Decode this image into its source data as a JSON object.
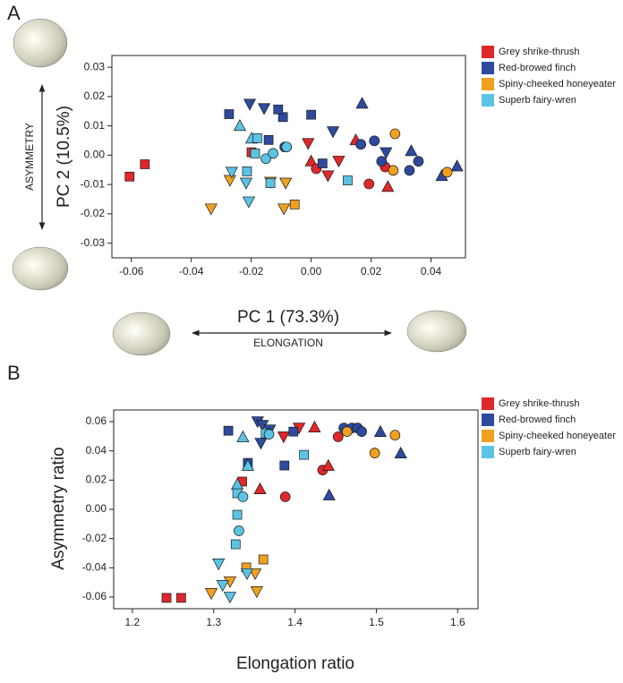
{
  "chart_data": [
    {
      "type": "scatter",
      "panel_label": "A",
      "x_label": "PC 1 (73.3%)",
      "y_label": "PC 2 (10.5%)",
      "x_annotation": "ELONGATION",
      "y_annotation": "ASYMMETRY",
      "xlim": [
        -0.0665,
        0.0515
      ],
      "ylim": [
        -0.035,
        0.034
      ],
      "xticks": [
        -0.06,
        -0.04,
        -0.02,
        {
          "value": 0,
          "label": "0.00"
        },
        0.02,
        0.04
      ],
      "yticks": [
        -0.03,
        -0.02,
        -0.01,
        {
          "value": 0,
          "label": "0.00"
        },
        0.01,
        0.02,
        0.03
      ],
      "legend": "right",
      "series": [
        {
          "name": "Grey shrike-thrush",
          "color": "#e0272a",
          "x": [
            -0.0606,
            -0.0555,
            -0.0199,
            -0.001,
            0,
            0.0017,
            0.0092,
            0.0149,
            0.0056,
            0.0193,
            0.0247,
            0.0256
          ],
          "values": [
            -0.0073,
            -0.0031,
            0.001,
            0.004,
            -0.002,
            -0.0046,
            -0.002,
            0.0052,
            -0.007,
            -0.0098,
            -0.004,
            -0.0107
          ],
          "markers": [
            "square",
            "square",
            "square",
            "triangle-down",
            "triangle-up",
            "circle",
            "triangle-down",
            "triangle-up",
            "triangle-down",
            "circle",
            "circle",
            "triangle-up"
          ]
        },
        {
          "name": "Red-browed finch",
          "color": "#2e4a9e",
          "x": [
            -0.0274,
            -0.0205,
            -0.0157,
            -0.0142,
            -0.0094,
            -0.011,
            0,
            0.0038,
            0.0073,
            0.017,
            0.0166,
            0.0211,
            0.0235,
            0.025,
            0.0334,
            0.0328,
            0.0358,
            0.0436,
            0.0487,
            -0.0088
          ],
          "values": [
            0.014,
            0.0174,
            0.0159,
            0.0052,
            0.013,
            0.0156,
            0.0138,
            -0.0028,
            0.008,
            0.0177,
            0.0037,
            0.0049,
            -0.0021,
            0.0009,
            0.0015,
            -0.0052,
            -0.0021,
            -0.007,
            -0.0037,
            0.0028
          ],
          "markers": [
            "square",
            "triangle-down",
            "triangle-down",
            "square",
            "square",
            "square",
            "square",
            "square",
            "triangle-down",
            "triangle-up",
            "circle",
            "circle",
            "circle",
            "triangle-down",
            "triangle-up",
            "circle",
            "circle",
            "triangle-up",
            "triangle-up",
            "circle"
          ]
        },
        {
          "name": "Spiny-cheeked honeyeater",
          "color": "#f0a020",
          "x": [
            -0.0334,
            -0.0271,
            -0.0136,
            -0.0085,
            -0.0091,
            -0.0055,
            0.028,
            0.0274,
            0.0454
          ],
          "values": [
            -0.0183,
            -0.0086,
            -0.0092,
            -0.0095,
            -0.0183,
            -0.0168,
            0.0073,
            -0.0052,
            -0.0058
          ],
          "markers": [
            "triangle-down",
            "triangle-down",
            "triangle-down",
            "triangle-down",
            "triangle-down",
            "square",
            "circle",
            "circle",
            "circle"
          ]
        },
        {
          "name": "Superb fairy-wren",
          "color": "#5bc4e4",
          "x": [
            -0.0238,
            -0.0199,
            -0.018,
            -0.0187,
            -0.0214,
            -0.0265,
            -0.0217,
            -0.0208,
            -0.0151,
            -0.0127,
            -0.0082,
            -0.0136,
            0.0122
          ],
          "values": [
            0.0101,
            0.0058,
            0.0058,
            0.0006,
            -0.0055,
            -0.0058,
            -0.0095,
            -0.0159,
            -0.0012,
            0.0006,
            0.0028,
            -0.0095,
            -0.0086
          ],
          "markers": [
            "triangle-up",
            "triangle-up",
            "square",
            "square",
            "square",
            "triangle-down",
            "triangle-down",
            "triangle-down",
            "circle",
            "circle",
            "circle",
            "square",
            "square"
          ]
        }
      ]
    },
    {
      "type": "scatter",
      "panel_label": "B",
      "x_label": "Elongation ratio",
      "y_label": "Asymmetry ratio",
      "xlim": [
        1.177,
        1.625
      ],
      "ylim": [
        -0.068,
        0.068
      ],
      "xticks": [
        1.2,
        1.3,
        1.4,
        1.5,
        1.6
      ],
      "yticks": [
        -0.06,
        -0.04,
        -0.02,
        {
          "value": 0,
          "label": "0.00"
        },
        0.02,
        0.04,
        0.06
      ],
      "legend": "right",
      "series": [
        {
          "name": "Grey shrike-thrush",
          "color": "#e0272a",
          "x": [
            1.242,
            1.26,
            1.335,
            1.357,
            1.388,
            1.386,
            1.405,
            1.424,
            1.434,
            1.441,
            1.453
          ],
          "values": [
            -0.0606,
            -0.0606,
            0.019,
            0.014,
            0.0086,
            0.0496,
            0.0557,
            0.0563,
            0.0269,
            0.03,
            0.0496
          ],
          "markers": [
            "square",
            "square",
            "square",
            "triangle-up",
            "circle",
            "triangle-down",
            "triangle-down",
            "triangle-up",
            "circle",
            "triangle-up",
            "circle"
          ]
        },
        {
          "name": "Red-browed finch",
          "color": "#2e4a9e",
          "x": [
            1.318,
            1.354,
            1.36,
            1.369,
            1.358,
            1.342,
            1.387,
            1.398,
            1.46,
            1.47,
            1.477,
            1.442,
            1.482,
            1.505,
            1.53
          ],
          "values": [
            0.0538,
            0.06,
            0.0575,
            0.0544,
            0.0453,
            0.0318,
            0.03,
            0.0532,
            0.0557,
            0.0557,
            0.0557,
            0.0098,
            0.0532,
            0.0532,
            0.0385
          ],
          "markers": [
            "square",
            "triangle-down",
            "triangle-down",
            "triangle-down",
            "triangle-down",
            "square",
            "square",
            "square",
            "circle",
            "circle",
            "circle",
            "triangle-up",
            "circle",
            "triangle-up",
            "triangle-up"
          ]
        },
        {
          "name": "Spiny-cheeked honeyeater",
          "color": "#f0a020",
          "x": [
            1.464,
            1.498,
            1.523,
            1.361,
            1.34,
            1.351,
            1.32,
            1.297,
            1.353
          ],
          "values": [
            0.0532,
            0.0385,
            0.0508,
            -0.0343,
            -0.0398,
            -0.044,
            -0.0495,
            -0.0575,
            -0.0563
          ],
          "markers": [
            "circle",
            "circle",
            "circle",
            "square",
            "square",
            "triangle-down",
            "triangle-down",
            "triangle-down",
            "triangle-down"
          ]
        },
        {
          "name": "Superb fairy-wren",
          "color": "#5bc4e4",
          "x": [
            1.336,
            1.364,
            1.368,
            1.342,
            1.329,
            1.329,
            1.336,
            1.329,
            1.331,
            1.327,
            1.306,
            1.311,
            1.341,
            1.32,
            1.411
          ],
          "values": [
            0.0496,
            0.052,
            0.0514,
            0.03,
            0.0171,
            0.011,
            0.0086,
            -0.0037,
            -0.0147,
            -0.0239,
            -0.0373,
            -0.052,
            -0.044,
            -0.06,
            0.0373
          ],
          "markers": [
            "triangle-up",
            "square",
            "circle",
            "triangle-up",
            "triangle-up",
            "square",
            "circle",
            "square",
            "circle",
            "square",
            "triangle-down",
            "triangle-down",
            "triangle-down",
            "triangle-down",
            "square"
          ]
        }
      ]
    }
  ]
}
